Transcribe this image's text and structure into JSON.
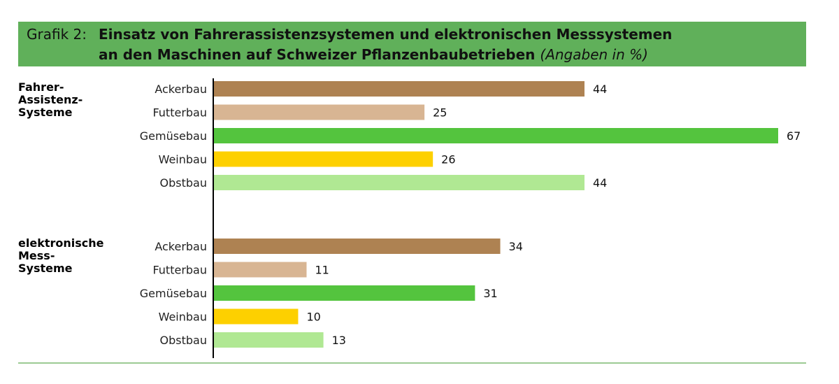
{
  "header": {
    "prefix": "Grafik 2:",
    "title_line1": "Einsatz von Fahrerassistenzsystemen und elektronischen Messsystemen",
    "title_line2": "an den Maschinen auf Schweizer Pflanzenbaubetrieben",
    "unit_note": "(Angaben in %)"
  },
  "colors": {
    "header_bg": "#60b05a",
    "Ackerbau": "#ae8252",
    "Futterbau": "#d8b593",
    "Gemüsebau": "#54c43e",
    "Weinbau": "#fdd000",
    "Obstbau": "#b0e893",
    "rule": "#7cb870"
  },
  "chart_data": {
    "type": "bar",
    "orientation": "horizontal",
    "title": "Einsatz von Fahrerassistenzsystemen und elektronischen Messsystemen an den Maschinen auf Schweizer Pflanzenbaubetrieben",
    "unit": "(Angaben in %)",
    "xlim": [
      0,
      67
    ],
    "groups": [
      {
        "name_lines": [
          "Fahrer-",
          "Assistenz-",
          "Systeme"
        ],
        "categories": [
          "Ackerbau",
          "Futterbau",
          "Gemüsebau",
          "Weinbau",
          "Obstbau"
        ],
        "values": [
          44,
          25,
          67,
          26,
          44
        ]
      },
      {
        "name_lines": [
          "elektronische",
          "Mess-",
          "Systeme"
        ],
        "categories": [
          "Ackerbau",
          "Futterbau",
          "Gemüsebau",
          "Weinbau",
          "Obstbau"
        ],
        "values": [
          34,
          11,
          31,
          10,
          13
        ]
      }
    ]
  }
}
